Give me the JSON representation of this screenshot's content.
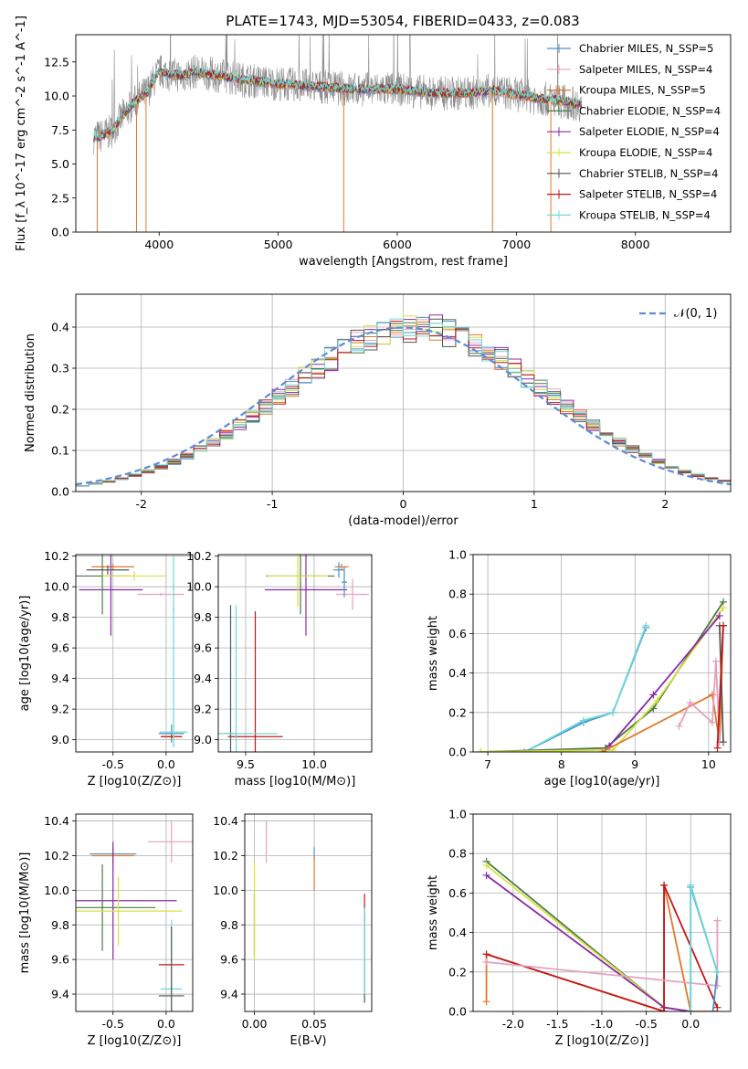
{
  "figure_title": "PLATE=1743, MJD=53054, FIBERID=0433, z=0.083",
  "colors": {
    "Chabrier MILES": "#4a90c8",
    "Salpeter MILES": "#e6a0c0",
    "Kroupa MILES": "#e0782a",
    "Chabrier ELODIE": "#4a7a4a",
    "Salpeter ELODIE": "#8a2aa8",
    "Kroupa ELODIE": "#d8e040",
    "Chabrier STELIB": "#555555",
    "Salpeter STELIB": "#c01818",
    "Kroupa STELIB": "#70d8d8",
    "normal": "#5b8bd6",
    "data_gray": "#8c8c8c"
  },
  "chart_data": [
    {
      "id": "spectrum",
      "type": "line",
      "title": "PLATE=1743, MJD=53054, FIBERID=0433, z=0.083",
      "xlabel": "wavelength [Angstrom, rest frame]",
      "ylabel": "Flux [f_λ 10^-17 erg cm^-2 s^-1 A^-1]",
      "xlim": [
        3300,
        8800
      ],
      "ylim": [
        0,
        14.5
      ],
      "xticks": [
        4000,
        5000,
        6000,
        7000,
        8000
      ],
      "yticks": [
        0.0,
        2.5,
        5.0,
        7.5,
        10.0,
        12.5
      ],
      "legend_position": "top-right",
      "legend": [
        "Chabrier MILES, N_SSP=5",
        "Salpeter MILES, N_SSP=4",
        "Kroupa MILES, N_SSP=5",
        "Chabrier ELODIE, N_SSP=4",
        "Salpeter ELODIE, N_SSP=4",
        "Kroupa ELODIE, N_SSP=4",
        "Chabrier STELIB, N_SSP=4",
        "Salpeter STELIB, N_SSP=4",
        "Kroupa STELIB, N_SSP=4"
      ],
      "model_continuum": {
        "x": [
          3500,
          3600,
          3700,
          3800,
          3900,
          4000,
          4100,
          4200,
          4300,
          4500,
          4700,
          5000,
          5300,
          5600,
          6000,
          6300,
          6600,
          6800,
          7000,
          7200,
          7400,
          7500
        ],
        "y": [
          7.0,
          7.4,
          8.6,
          9.6,
          10.3,
          11.8,
          11.6,
          11.5,
          11.8,
          11.5,
          11.2,
          10.9,
          10.7,
          10.5,
          10.5,
          10.2,
          10.2,
          10.4,
          10.1,
          9.8,
          9.6,
          9.4
        ]
      },
      "data_range": [
        3450,
        7550
      ]
    },
    {
      "id": "residuals",
      "type": "line",
      "xlabel": "(data-model)/error",
      "ylabel": "Normed distribution",
      "xlim": [
        -2.5,
        2.5
      ],
      "ylim": [
        0,
        0.48
      ],
      "xticks": [
        -2,
        -1,
        0,
        1,
        2
      ],
      "yticks": [
        0.0,
        0.1,
        0.2,
        0.3,
        0.4
      ],
      "legend_position": "top-right",
      "legend": [
        "𝒩(0, 1)"
      ],
      "normal_curve": {
        "mu": 0,
        "sigma": 1
      },
      "bin_width": 0.1
    },
    {
      "id": "age_vs_Z",
      "type": "scatter",
      "xlabel": "Z [log10(Z/Z⊙)]",
      "ylabel": "age  [log10(age/yr)]",
      "xlim": [
        -0.85,
        0.25
      ],
      "ylim": [
        8.92,
        10.21
      ],
      "xticks": [
        -0.5,
        0.0
      ],
      "yticks": [
        9.0,
        9.2,
        9.4,
        9.6,
        9.8,
        10.0,
        10.2
      ],
      "points": [
        {
          "m": "Chabrier MILES",
          "x": 0.05,
          "y": 9.04,
          "ex": 0.12,
          "ey": 0.06
        },
        {
          "m": "Kroupa MILES",
          "x": -0.5,
          "y": 10.13,
          "ex": 0.2,
          "ey": 0.02
        },
        {
          "m": "Kroupa MILES",
          "x": 0.05,
          "y": 9.02,
          "ex": 0.1,
          "ey": 0.02
        },
        {
          "m": "Salpeter MILES",
          "x": -0.05,
          "y": 9.95,
          "ex": 0.22,
          "ey": 0.01
        },
        {
          "m": "Salpeter ELODIE",
          "x": -0.52,
          "y": 9.98,
          "ex": 0.3,
          "ey": 0.3
        },
        {
          "m": "Chabrier ELODIE",
          "x": -0.6,
          "y": 10.07,
          "ex": 0.26,
          "ey": 0.25
        },
        {
          "m": "Kroupa ELODIE",
          "x": -0.3,
          "y": 10.07,
          "ex": 0.3,
          "ey": 0.03
        },
        {
          "m": "Salpeter STELIB",
          "x": 0.05,
          "y": 9.02,
          "ex": 0.1,
          "ey": 0.01
        },
        {
          "m": "Kroupa STELIB",
          "x": 0.07,
          "y": 9.05,
          "ex": 0.13,
          "ey": 0.1
        },
        {
          "m": "Chabrier STELIB",
          "x": -0.55,
          "y": 10.11,
          "ex": 0.2,
          "ey": 0.03
        },
        {
          "m": "Kroupa STELIB",
          "x": 0.07,
          "y": 9.85,
          "ex": 0.01,
          "ey": 0.9
        }
      ]
    },
    {
      "id": "age_vs_mass",
      "type": "scatter",
      "xlabel": "mass [log10(M/M⊙)]",
      "ylabel": "",
      "xlim": [
        9.3,
        10.42
      ],
      "ylim": [
        8.92,
        10.21
      ],
      "xticks": [
        9.5,
        10.0
      ],
      "yticks": [
        9.0,
        9.2,
        9.4,
        9.6,
        9.8,
        10.0,
        10.2
      ],
      "points": [
        {
          "m": "Salpeter MILES",
          "x": 10.28,
          "y": 9.95,
          "ex": 0.12,
          "ey": 0.1
        },
        {
          "m": "Kroupa MILES",
          "x": 10.2,
          "y": 10.13,
          "ex": 0.05,
          "ey": 0.02
        },
        {
          "m": "Salpeter ELODIE",
          "x": 9.94,
          "y": 9.98,
          "ex": 0.3,
          "ey": 0.3
        },
        {
          "m": "Chabrier ELODIE",
          "x": 9.9,
          "y": 10.07,
          "ex": 0.25,
          "ey": 0.25
        },
        {
          "m": "Kroupa ELODIE",
          "x": 9.88,
          "y": 10.07,
          "ex": 0.22,
          "ey": 0.2
        },
        {
          "m": "Chabrier MILES",
          "x": 10.18,
          "y": 10.11,
          "ex": 0.04,
          "ey": 0.05
        },
        {
          "m": "Salpeter STELIB",
          "x": 9.57,
          "y": 9.02,
          "ex": 0.2,
          "ey": 0.82
        },
        {
          "m": "Chabrier STELIB",
          "x": 9.39,
          "y": 9.04,
          "ex": 0.05,
          "ey": 0.84
        },
        {
          "m": "Kroupa STELIB",
          "x": 9.43,
          "y": 9.04,
          "ex": 0.3,
          "ey": 0.84
        },
        {
          "m": "Chabrier MILES",
          "x": 10.22,
          "y": 10.03,
          "ex": 0.02,
          "ey": 0.1
        }
      ]
    },
    {
      "id": "weight_vs_age",
      "type": "line",
      "xlabel": "age  [log10(age/yr)]",
      "ylabel": "mass weight",
      "xlim": [
        6.8,
        10.3
      ],
      "ylim": [
        0,
        1.0
      ],
      "xticks": [
        7,
        8,
        9,
        10
      ],
      "yticks": [
        0.0,
        0.2,
        0.4,
        0.6,
        0.8,
        1.0
      ],
      "series": [
        {
          "m": "Chabrier MILES",
          "x": [
            7.5,
            8.3,
            8.7,
            9.15
          ],
          "y": [
            0.0,
            0.15,
            0.2,
            0.63
          ]
        },
        {
          "m": "Kroupa STELIB",
          "x": [
            7.5,
            8.3,
            8.7,
            9.15
          ],
          "y": [
            0.0,
            0.16,
            0.2,
            0.64
          ]
        },
        {
          "m": "Chabrier ELODIE",
          "x": [
            6.9,
            8.6,
            9.25,
            10.2
          ],
          "y": [
            0.0,
            0.02,
            0.22,
            0.76
          ]
        },
        {
          "m": "Kroupa ELODIE",
          "x": [
            6.9,
            8.7,
            9.3,
            10.2
          ],
          "y": [
            0.0,
            0.01,
            0.26,
            0.73
          ]
        },
        {
          "m": "Salpeter ELODIE",
          "x": [
            8.65,
            9.25,
            10.15
          ],
          "y": [
            0.03,
            0.29,
            0.69
          ]
        },
        {
          "m": "Kroupa MILES",
          "x": [
            8.55,
            10.05,
            10.15,
            10.2
          ],
          "y": [
            0.0,
            0.29,
            0.05,
            0.64
          ]
        },
        {
          "m": "Salpeter MILES",
          "x": [
            9.6,
            9.75,
            10.05,
            10.1,
            10.15
          ],
          "y": [
            0.13,
            0.25,
            0.15,
            0.46,
            0.05
          ]
        },
        {
          "m": "Chabrier STELIB",
          "x": [
            10.15,
            10.2
          ],
          "y": [
            0.64,
            0.05
          ]
        },
        {
          "m": "Salpeter STELIB",
          "x": [
            10.12,
            10.2
          ],
          "y": [
            0.02,
            0.64
          ]
        }
      ]
    },
    {
      "id": "mass_vs_Z",
      "type": "scatter",
      "xlabel": "Z [log10(Z/Z⊙)]",
      "ylabel": "mass [log10(M/M⊙)]",
      "xlim": [
        -0.85,
        0.25
      ],
      "ylim": [
        9.3,
        10.44
      ],
      "xticks": [
        -0.5,
        0.0
      ],
      "yticks": [
        9.4,
        9.6,
        9.8,
        10.0,
        10.2,
        10.4
      ],
      "points": [
        {
          "m": "Salpeter MILES",
          "x": 0.05,
          "y": 10.28,
          "ex": 0.22,
          "ey": 0.12
        },
        {
          "m": "Chabrier MILES",
          "x": -0.5,
          "y": 10.21,
          "ex": 0.22,
          "ey": 0.02
        },
        {
          "m": "Kroupa MILES",
          "x": -0.5,
          "y": 10.2,
          "ex": 0.2,
          "ey": 0.05
        },
        {
          "m": "Salpeter ELODIE",
          "x": -0.5,
          "y": 9.94,
          "ex": 0.6,
          "ey": 0.34
        },
        {
          "m": "Chabrier ELODIE",
          "x": -0.6,
          "y": 9.9,
          "ex": 0.5,
          "ey": 0.25
        },
        {
          "m": "Kroupa ELODIE",
          "x": -0.45,
          "y": 9.88,
          "ex": 0.6,
          "ey": 0.2
        },
        {
          "m": "Salpeter STELIB",
          "x": 0.05,
          "y": 9.57,
          "ex": 0.12,
          "ey": 0.0
        },
        {
          "m": "Kroupa STELIB",
          "x": 0.05,
          "y": 9.43,
          "ex": 0.1,
          "ey": 0.4
        },
        {
          "m": "Chabrier STELIB",
          "x": 0.05,
          "y": 9.39,
          "ex": 0.12,
          "ey": 0.4
        }
      ]
    },
    {
      "id": "mass_vs_ebv",
      "type": "scatter",
      "xlabel": "E(B-V)",
      "ylabel": "",
      "xlim": [
        -0.008,
        0.098
      ],
      "ylim": [
        9.3,
        10.44
      ],
      "xticks": [
        0.0,
        0.05
      ],
      "yticks": [
        9.4,
        9.6,
        9.8,
        10.0,
        10.2,
        10.4
      ],
      "points": [
        {
          "m": "Salpeter MILES",
          "x": 0.01,
          "y": 10.28,
          "ex": 0.0,
          "ey": 0.12
        },
        {
          "m": "Chabrier MILES",
          "x": 0.05,
          "y": 10.21,
          "ex": 0.0,
          "ey": 0.04
        },
        {
          "m": "Kroupa MILES",
          "x": 0.05,
          "y": 10.1,
          "ex": 0.0,
          "ey": 0.1
        },
        {
          "m": "Salpeter ELODIE",
          "x": 0.0,
          "y": 9.8,
          "ex": 0.0,
          "ey": 0.18
        },
        {
          "m": "Kroupa ELODIE",
          "x": 0.0,
          "y": 9.88,
          "ex": 0.0,
          "ey": 0.28
        },
        {
          "m": "Salpeter STELIB",
          "x": 0.092,
          "y": 9.9,
          "ex": 0.0,
          "ey": 0.08
        },
        {
          "m": "Chabrier STELIB",
          "x": 0.092,
          "y": 9.6,
          "ex": 0.0,
          "ey": 0.25
        },
        {
          "m": "Kroupa STELIB",
          "x": 0.092,
          "y": 9.65,
          "ex": 0.0,
          "ey": 0.25
        }
      ]
    },
    {
      "id": "weight_vs_Z",
      "type": "line",
      "xlabel": "Z [log10(Z/Z⊙)]",
      "ylabel": "mass weight",
      "xlim": [
        -2.45,
        0.45
      ],
      "ylim": [
        0,
        1.0
      ],
      "xticks": [
        -2.0,
        -1.5,
        -1.0,
        -0.5,
        0.0
      ],
      "yticks": [
        0.0,
        0.2,
        0.4,
        0.6,
        0.8,
        1.0
      ],
      "series": [
        {
          "m": "Chabrier ELODIE",
          "x": [
            -2.3,
            -0.3,
            0.0
          ],
          "y": [
            0.76,
            0.02,
            0.0
          ]
        },
        {
          "m": "Kroupa ELODIE",
          "x": [
            -2.3,
            -0.3,
            0.0
          ],
          "y": [
            0.74,
            0.02,
            0.0
          ]
        },
        {
          "m": "Salpeter ELODIE",
          "x": [
            -2.3,
            -0.3,
            0.0
          ],
          "y": [
            0.69,
            0.02,
            0.0
          ]
        },
        {
          "m": "Kroupa MILES",
          "x": [
            -2.3,
            -2.3,
            -0.3,
            -0.3,
            0.0,
            0.3
          ],
          "y": [
            0.05,
            0.29,
            0.0,
            0.64,
            0.0,
            0.0
          ]
        },
        {
          "m": "Salpeter STELIB",
          "x": [
            -2.3,
            -0.3,
            -0.3,
            0.3
          ],
          "y": [
            0.29,
            0.0,
            0.64,
            0.02
          ]
        },
        {
          "m": "Salpeter MILES",
          "x": [
            -2.3,
            0.3,
            0.3
          ],
          "y": [
            0.25,
            0.13,
            0.46
          ]
        },
        {
          "m": "Chabrier MILES",
          "x": [
            0.0,
            0.0,
            0.3,
            0.25
          ],
          "y": [
            0.0,
            0.63,
            0.2,
            0.0
          ]
        },
        {
          "m": "Kroupa STELIB",
          "x": [
            0.0,
            0.0,
            0.3
          ],
          "y": [
            0.0,
            0.64,
            0.2
          ]
        }
      ]
    }
  ]
}
